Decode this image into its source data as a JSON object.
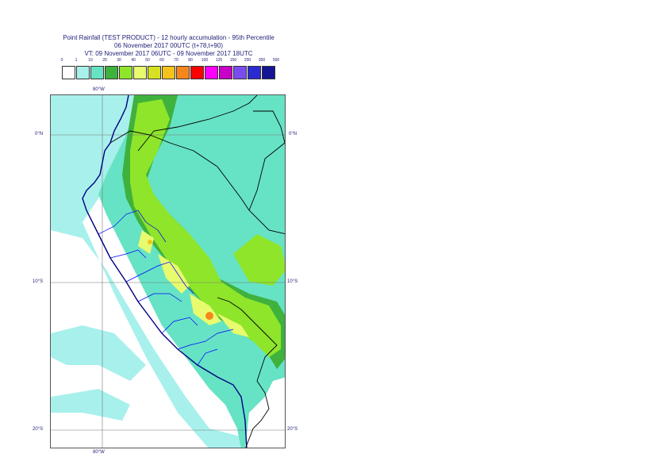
{
  "header": {
    "line1": "Point Rainfall (TEST PRODUCT) - 12 hourly accumulation - 95th Percentile",
    "line2": "06 November 2017 00UTC (t+78,t+90)",
    "line3": "VT: 09 November 2017 06UTC - 09 November 2017 18UTC"
  },
  "legend": {
    "thresholds": [
      "0",
      "1",
      "10",
      "20",
      "30",
      "40",
      "50",
      "60",
      "70",
      "80",
      "100",
      "125",
      "150",
      "200",
      "300",
      "500"
    ],
    "colors": [
      "#ffffff",
      "#a8f0ec",
      "#66e3c4",
      "#3fb13d",
      "#8ee52a",
      "#e8fb6e",
      "#d6e221",
      "#f5c21b",
      "#f7871c",
      "#ff0000",
      "#ff00ff",
      "#c800c8",
      "#7a4cf0",
      "#2a2ad0",
      "#141496"
    ]
  },
  "map": {
    "lon_labels": {
      "top": "80°W",
      "bottom": "80°W"
    },
    "lat_labels": [
      "0°N",
      "10°S",
      "20°S"
    ],
    "colors": {
      "ocean_light": "#a8f0ec",
      "land_base": "#66e3c4",
      "green": "#3fb13d",
      "lime": "#8ee52a",
      "yellow": "#e8fb6e",
      "olive_yellow": "#d6e221",
      "orange": "#f5c21b",
      "dark_orange": "#f7871c",
      "coast": "#000080",
      "border": "#000000",
      "admin": "#0000ff"
    }
  }
}
